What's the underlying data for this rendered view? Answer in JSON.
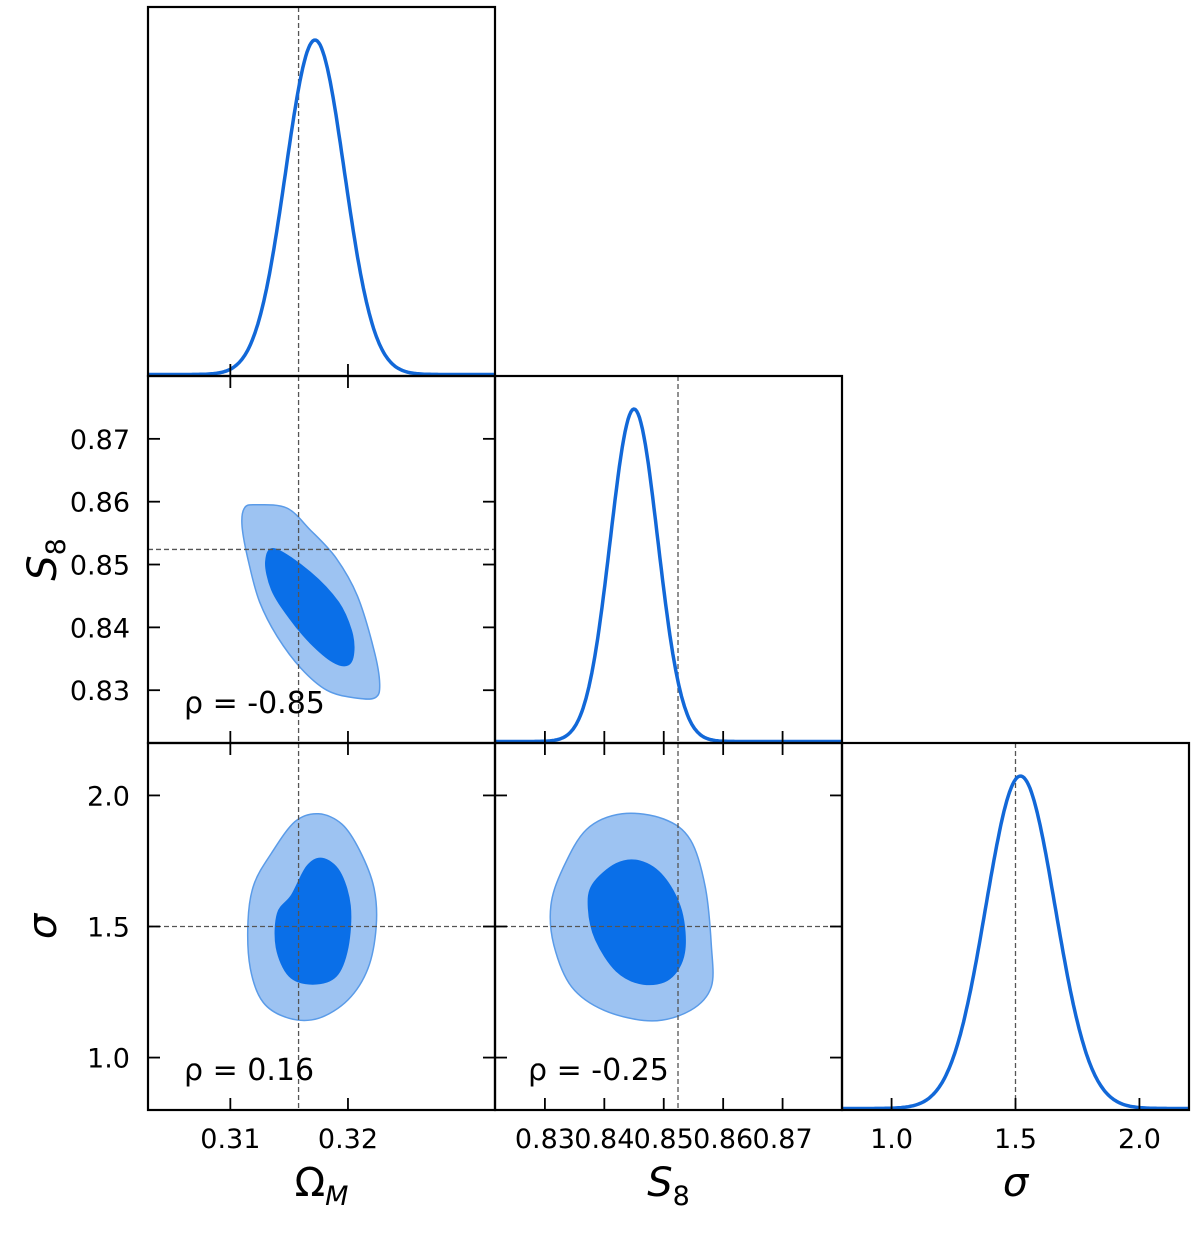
{
  "colors": {
    "line": "#1268d8",
    "contour_inner": "#0a6fe8",
    "contour_outer": "#9dc3f2",
    "contour_edge": "#5a9be8",
    "truth_line": "#555555"
  },
  "chart_data": {
    "type": "corner",
    "parameters": [
      {
        "key": "omega_m",
        "label": {
          "main": "Ω",
          "sub": "M"
        },
        "range": [
          0.303,
          0.3325
        ],
        "ticks": [
          0.31,
          0.32
        ],
        "tick_labels": [
          "0.31",
          "0.32"
        ],
        "truth": 0.3158,
        "marginal": {
          "mean": 0.3172,
          "sd": 0.0025
        }
      },
      {
        "key": "s8",
        "label": {
          "main": "S",
          "sub": "8"
        },
        "range": [
          0.8216,
          0.88
        ],
        "ticks": [
          0.83,
          0.84,
          0.85,
          0.86,
          0.87
        ],
        "tick_labels": [
          "0.83",
          "0.84",
          "0.85",
          "0.86",
          "0.87"
        ],
        "truth": 0.8524,
        "marginal": {
          "mean": 0.845,
          "sd": 0.004
        }
      },
      {
        "key": "sigma",
        "label": {
          "main": "σ",
          "sub": ""
        },
        "range": [
          0.8,
          2.2
        ],
        "ticks": [
          1.0,
          1.5,
          2.0
        ],
        "tick_labels": [
          "1.0",
          "1.5",
          "2.0"
        ],
        "truth": 1.5,
        "marginal": {
          "mean": 1.52,
          "sd": 0.14
        }
      }
    ],
    "x_axis_params": [
      "omega_m",
      "s8",
      "sigma"
    ],
    "y_axis_params": [
      "s8",
      "sigma"
    ],
    "contours": [
      {
        "x": "omega_m",
        "y": "s8",
        "correlation": -0.85,
        "annotation": "ρ = -0.85",
        "inner_68": [
          [
            0.3138,
            0.8525
          ],
          [
            0.3168,
            0.8488
          ],
          [
            0.3192,
            0.844
          ],
          [
            0.3203,
            0.8395
          ],
          [
            0.3205,
            0.836
          ],
          [
            0.32,
            0.834
          ],
          [
            0.3187,
            0.8345
          ],
          [
            0.3168,
            0.8375
          ],
          [
            0.315,
            0.8415
          ],
          [
            0.3135,
            0.846
          ],
          [
            0.313,
            0.8505
          ]
        ],
        "outer_95": [
          [
            0.3122,
            0.8595
          ],
          [
            0.3148,
            0.859
          ],
          [
            0.3168,
            0.8555
          ],
          [
            0.319,
            0.851
          ],
          [
            0.3208,
            0.845
          ],
          [
            0.3222,
            0.8365
          ],
          [
            0.3227,
            0.831
          ],
          [
            0.3223,
            0.8288
          ],
          [
            0.3205,
            0.8288
          ],
          [
            0.3182,
            0.83
          ],
          [
            0.316,
            0.8335
          ],
          [
            0.314,
            0.8385
          ],
          [
            0.3125,
            0.844
          ],
          [
            0.3116,
            0.85
          ],
          [
            0.311,
            0.856
          ],
          [
            0.3112,
            0.859
          ]
        ]
      },
      {
        "x": "omega_m",
        "y": "sigma",
        "correlation": 0.16,
        "annotation": "ρ = 0.16",
        "inner_68": [
          [
            0.3152,
            1.62
          ],
          [
            0.3165,
            1.73
          ],
          [
            0.3178,
            1.76
          ],
          [
            0.3193,
            1.71
          ],
          [
            0.3202,
            1.58
          ],
          [
            0.32,
            1.42
          ],
          [
            0.319,
            1.31
          ],
          [
            0.317,
            1.28
          ],
          [
            0.315,
            1.31
          ],
          [
            0.3139,
            1.42
          ],
          [
            0.314,
            1.55
          ]
        ],
        "outer_95": [
          [
            0.3135,
            1.78
          ],
          [
            0.3155,
            1.9
          ],
          [
            0.3175,
            1.93
          ],
          [
            0.3195,
            1.89
          ],
          [
            0.321,
            1.79
          ],
          [
            0.3222,
            1.65
          ],
          [
            0.3224,
            1.5
          ],
          [
            0.3217,
            1.34
          ],
          [
            0.32,
            1.22
          ],
          [
            0.3175,
            1.15
          ],
          [
            0.315,
            1.15
          ],
          [
            0.3128,
            1.21
          ],
          [
            0.3117,
            1.34
          ],
          [
            0.3115,
            1.52
          ],
          [
            0.312,
            1.66
          ]
        ]
      },
      {
        "x": "s8",
        "y": "sigma",
        "correlation": -0.25,
        "annotation": "ρ = -0.25",
        "inner_68": [
          [
            0.838,
            1.66
          ],
          [
            0.842,
            1.74
          ],
          [
            0.846,
            1.75
          ],
          [
            0.85,
            1.69
          ],
          [
            0.853,
            1.56
          ],
          [
            0.8535,
            1.4
          ],
          [
            0.851,
            1.3
          ],
          [
            0.8465,
            1.28
          ],
          [
            0.842,
            1.33
          ],
          [
            0.8385,
            1.45
          ],
          [
            0.8373,
            1.57
          ]
        ],
        "outer_95": [
          [
            0.833,
            1.72
          ],
          [
            0.837,
            1.87
          ],
          [
            0.843,
            1.93
          ],
          [
            0.85,
            1.91
          ],
          [
            0.8545,
            1.83
          ],
          [
            0.857,
            1.65
          ],
          [
            0.858,
            1.43
          ],
          [
            0.858,
            1.27
          ],
          [
            0.8545,
            1.18
          ],
          [
            0.848,
            1.14
          ],
          [
            0.84,
            1.18
          ],
          [
            0.8345,
            1.27
          ],
          [
            0.8315,
            1.43
          ],
          [
            0.831,
            1.58
          ]
        ]
      }
    ],
    "legend": "none",
    "grid": false
  }
}
